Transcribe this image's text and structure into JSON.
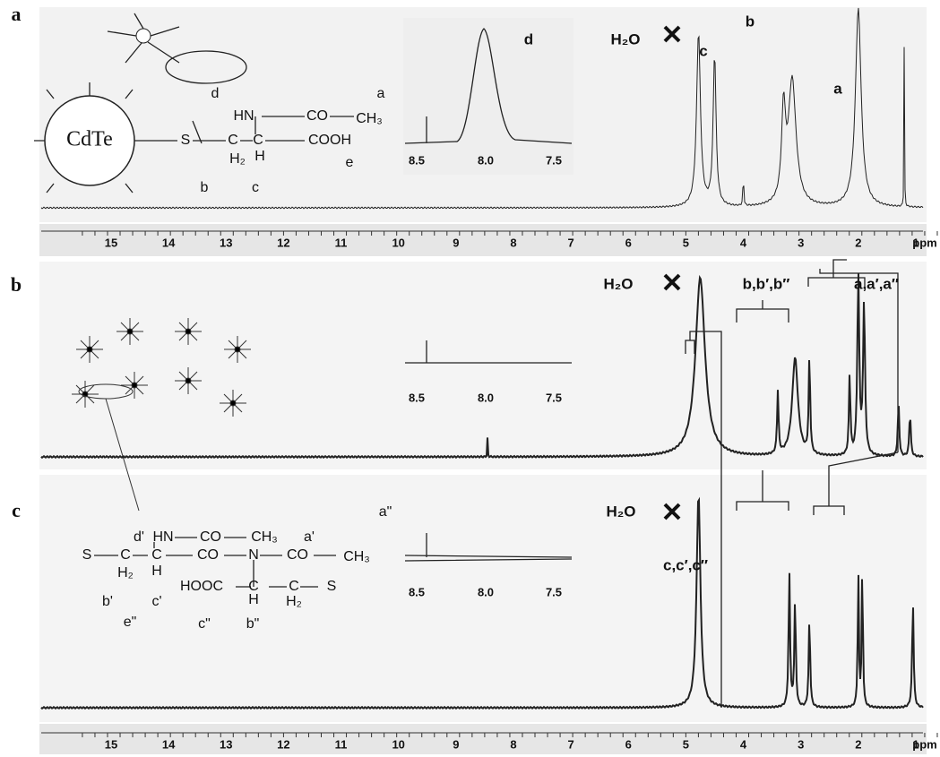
{
  "panels": [
    {
      "label": "a",
      "structure": [
        "d",
        "a",
        "HN",
        "CO",
        "CH₃",
        "CdTe",
        "S",
        "C",
        "H₂",
        "C",
        "H",
        "COOH",
        "e",
        "b",
        "c"
      ],
      "peak_labels": [
        "d",
        "H₂O",
        "c",
        "b",
        "a"
      ],
      "inset_ticks": [
        "8.5",
        "8.0",
        "7.5"
      ],
      "axis_ticks": [
        "15",
        "14",
        "13",
        "12",
        "11",
        "10",
        "9",
        "8",
        "7",
        "6",
        "5",
        "4",
        "3",
        "2",
        "1"
      ],
      "axis_unit": "ppm"
    },
    {
      "label": "b",
      "peak_labels": [
        "H₂O",
        "b,b′,b″",
        "a,a′,a″"
      ],
      "inset_ticks": [
        "8.5",
        "8.0",
        "7.5"
      ]
    },
    {
      "label": "c",
      "structure": [
        "d'",
        "HN",
        "CO",
        "CH₃",
        "a'",
        "a\"",
        "S",
        "C",
        "H₂",
        "C",
        "H",
        "CO",
        "N",
        "CO",
        "CH₃",
        "HOOC",
        "C",
        "H",
        "C",
        "H₂",
        "S",
        "b'",
        "c'",
        "e\"",
        "c\"",
        "b\""
      ],
      "peak_labels": [
        "H₂O",
        "c,c′,c″"
      ],
      "inset_ticks": [
        "8.5",
        "8.0",
        "7.5"
      ],
      "axis_ticks": [
        "15",
        "14",
        "13",
        "12",
        "11",
        "10",
        "9",
        "8",
        "7",
        "6",
        "5",
        "4",
        "3",
        "2",
        "1"
      ],
      "axis_unit": "ppm"
    }
  ]
}
